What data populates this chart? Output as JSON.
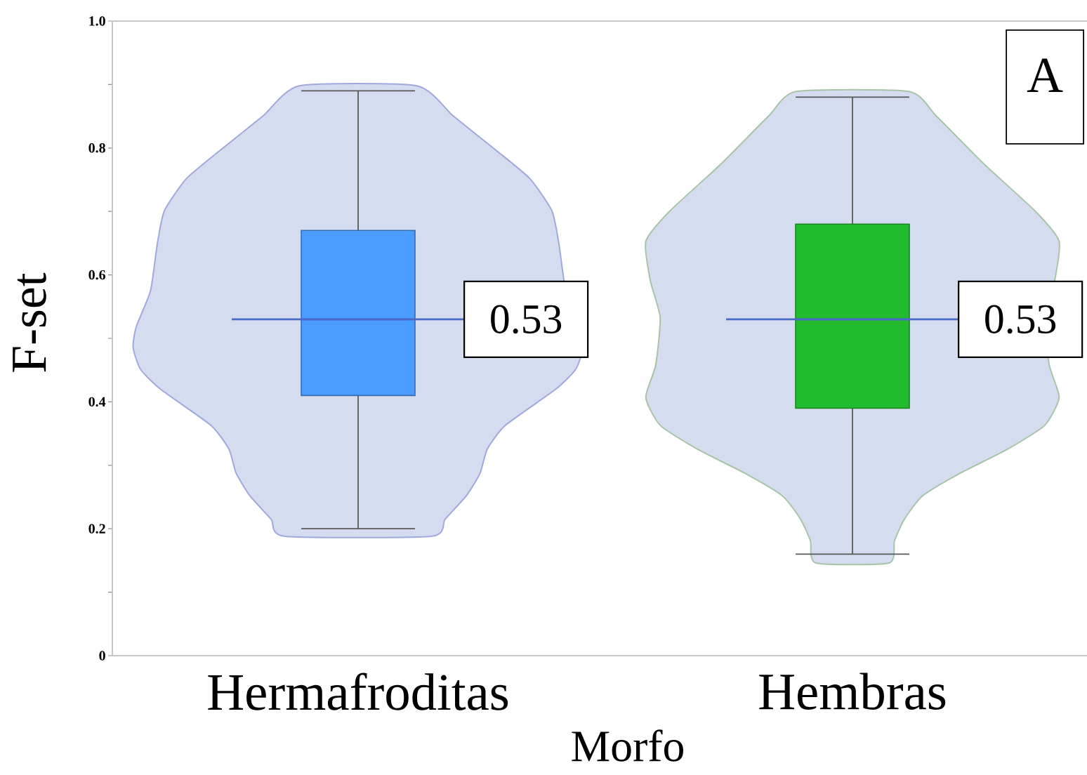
{
  "chart_data": {
    "type": "box",
    "xlabel": "Morfo",
    "ylabel": "F-set",
    "categories": [
      "Hermafroditas",
      "Hembras"
    ],
    "boxes": [
      {
        "low": 0.2,
        "q1": 0.41,
        "median": 0.53,
        "q3": 0.67,
        "high": 0.89
      },
      {
        "low": 0.16,
        "q1": 0.39,
        "median": 0.53,
        "q3": 0.68,
        "high": 0.88
      }
    ],
    "colors": [
      "#4a9cff",
      "#22bb2e"
    ],
    "ylim": [
      0,
      1
    ],
    "yticks": [
      0,
      {
        "value": 0.1,
        "label": null
      },
      0.2,
      {
        "value": 0.3,
        "label": null
      },
      0.4,
      {
        "value": 0.5,
        "label": null
      },
      0.6,
      {
        "value": 0.7,
        "label": null
      },
      0.8,
      {
        "value": 0.9,
        "label": null
      },
      {
        "value": 1,
        "label": "1.0"
      }
    ],
    "annotations": [
      "0.53",
      "0.53",
      "A"
    ]
  }
}
